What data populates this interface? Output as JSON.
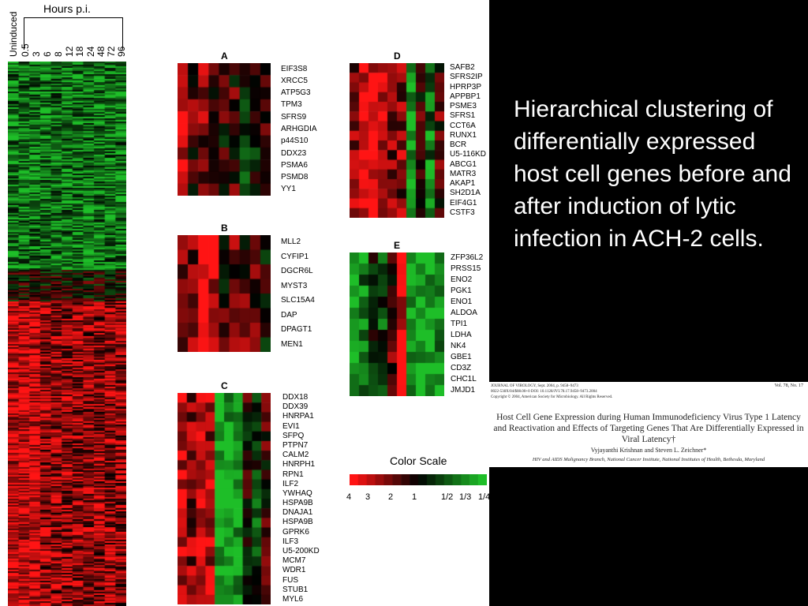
{
  "figure": {
    "main_heatmap": {
      "column_headers": [
        "Uninduced",
        "0.5",
        "3",
        "6",
        "8",
        "12",
        "18",
        "24",
        "48",
        "72",
        "96"
      ],
      "time_axis_label": "Hours p.i."
    },
    "panels": [
      {
        "letter": "A",
        "genes": [
          "EIF3S8",
          "XRCC5",
          "ATP5G3",
          "TPM3",
          "SFRS9",
          "ARHGDIA",
          "p44S10",
          "DDX23",
          "PSMA6",
          "PSMD8",
          "YY1"
        ]
      },
      {
        "letter": "B",
        "genes": [
          "MLL2",
          "CYFIP1",
          "DGCR6L",
          "MYST3",
          "SLC15A4",
          "DAP",
          "DPAGT1",
          "MEN1"
        ]
      },
      {
        "letter": "C",
        "genes": [
          "DDX18",
          "DDX39",
          "HNRPA1",
          "EVI1",
          "SFPQ",
          "PTPN7",
          "CALM2",
          "HNRPH1",
          "RPN1",
          "ILF2",
          "YWHAQ",
          "HSPA9B",
          "DNAJA1",
          "HSPA9B",
          "GPRK6",
          "ILF3",
          "U5-200KD",
          "MCM7",
          "WDR1",
          "FUS",
          "STUB1",
          "MYL6"
        ]
      },
      {
        "letter": "D",
        "genes": [
          "SAFB2",
          "SFRS2IP",
          "HPRP3P",
          "APPBP1",
          "PSME3",
          "SFRS1",
          "CCT6A",
          "RUNX1",
          "BCR",
          "U5-116KD",
          "ABCG1",
          "MATR3",
          "AKAP1",
          "SH2D1A",
          "EIF4G1",
          "CSTF3"
        ]
      },
      {
        "letter": "E",
        "genes": [
          "ZFP36L2",
          "PRSS15",
          "ENO2",
          "PGK1",
          "ENO1",
          "ALDOA",
          "TPI1",
          "LDHA",
          "NK4",
          "GBE1",
          "CD3Z",
          "CHC1L",
          "JMJD1"
        ]
      }
    ],
    "color_scale": {
      "title": "Color Scale",
      "ticks": [
        "4",
        "3",
        "2",
        "1",
        "1/2",
        "1/3",
        "1/4"
      ],
      "colors": {
        "red": "#ff0000",
        "black": "#000000",
        "green": "#1fae2a"
      }
    }
  },
  "caption": "Hierarchical clustering of differentially expressed host cell genes before and after induction of lytic infection in ACH-2 cells.",
  "paper": {
    "journal_line": "JOURNAL OF VIROLOGY, Sept. 2004, p. 9458–9473",
    "volume": "Vol. 78, No. 17",
    "doi_line": "0022-538X/04/$08.00+0    DOI: 10.1128/JVI.78.17.9458–9473.2004",
    "copyright_line": "Copyright © 2004, American Society for Microbiology. All Rights Reserved.",
    "title": "Host Cell Gene Expression during Human Immunodeficiency Virus Type 1 Latency and Reactivation and Effects of Targeting Genes That Are Differentially Expressed in Viral Latency†",
    "authors": "Vyjayanthi Krishnan and Steven L. Zeichner*",
    "affiliation": "HIV and AIDS Malignancy Branch, National Cancer Institute, National Institutes of Health, Bethesda, Maryland"
  }
}
